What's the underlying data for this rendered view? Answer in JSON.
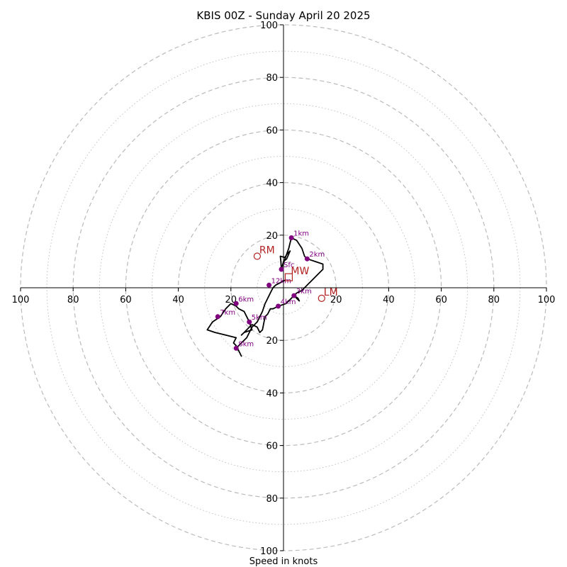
{
  "chart_data": {
    "type": "hodograph",
    "title": "KBIS 00Z - Sunday April 20 2025",
    "xlabel": "Speed in knots",
    "max_speed": 100,
    "ring_step": 20,
    "tick_labels": [
      "100",
      "80",
      "60",
      "40",
      "20",
      "20",
      "40",
      "60",
      "80",
      "100"
    ],
    "y_tick_labels_top": [
      "100",
      "80",
      "60",
      "40",
      "20"
    ],
    "y_tick_labels_bottom": [
      "20",
      "40",
      "60",
      "80",
      "100"
    ],
    "grid": true,
    "colors": {
      "trace": "#000000",
      "height_marker": "#800080",
      "motion_marker": "#b22222",
      "grid": "#bbbbbb"
    },
    "trace": [
      [
        -0.8,
        7
      ],
      [
        -1,
        10
      ],
      [
        -1.2,
        12
      ],
      [
        0.5,
        11.5
      ],
      [
        1.5,
        13
      ],
      [
        2.5,
        14
      ],
      [
        1.2,
        11
      ],
      [
        0,
        10
      ],
      [
        -0.5,
        8
      ],
      [
        2,
        15
      ],
      [
        3,
        19
      ],
      [
        5,
        18
      ],
      [
        7,
        15
      ],
      [
        8,
        12
      ],
      [
        9,
        11
      ],
      [
        12,
        10
      ],
      [
        15,
        9
      ],
      [
        15,
        7
      ],
      [
        13,
        5
      ],
      [
        11,
        3
      ],
      [
        9,
        1
      ],
      [
        7,
        -1
      ],
      [
        5,
        -2
      ],
      [
        4,
        -3
      ],
      [
        5.5,
        -4
      ],
      [
        6,
        -5
      ],
      [
        4,
        -3
      ],
      [
        1,
        -6
      ],
      [
        -2,
        -7
      ],
      [
        -4,
        -8
      ],
      [
        -5,
        -8
      ],
      [
        -6,
        -10
      ],
      [
        -7,
        -11
      ],
      [
        -8,
        -16
      ],
      [
        -9,
        -17
      ],
      [
        -10,
        -15
      ],
      [
        -12,
        -14
      ],
      [
        -15,
        -17
      ],
      [
        -16,
        -18
      ],
      [
        -15,
        -17
      ],
      [
        -12,
        -16
      ],
      [
        -13,
        -13
      ],
      [
        -14,
        -11
      ],
      [
        -15,
        -9
      ],
      [
        -17,
        -8
      ],
      [
        -18,
        -7
      ],
      [
        -20,
        -6
      ],
      [
        -22,
        -8
      ],
      [
        -24,
        -11
      ],
      [
        -27,
        -13
      ],
      [
        -29,
        -16
      ],
      [
        -26,
        -17
      ],
      [
        -22,
        -18
      ],
      [
        -18,
        -19
      ],
      [
        -19,
        -21
      ],
      [
        -18,
        -22
      ],
      [
        -17,
        -24
      ],
      [
        -16,
        -26
      ],
      [
        -17,
        -24
      ],
      [
        -18,
        -23
      ],
      [
        -16,
        -21
      ],
      [
        -14,
        -19
      ],
      [
        -13,
        -17
      ],
      [
        -12,
        -15
      ],
      [
        -10,
        -13
      ],
      [
        -9,
        -11
      ],
      [
        -8,
        -9
      ],
      [
        -7,
        -6
      ],
      [
        -6.5,
        -5
      ],
      [
        -5,
        -2
      ],
      [
        -4,
        0
      ],
      [
        -3,
        1
      ],
      [
        0.8,
        3
      ]
    ],
    "height_markers": [
      {
        "label": "Sfc",
        "x": -0.8,
        "y": 7
      },
      {
        "label": "1km",
        "x": 3,
        "y": 19
      },
      {
        "label": "2km",
        "x": 9,
        "y": 11
      },
      {
        "label": "3km",
        "x": 4,
        "y": -3
      },
      {
        "label": "4km",
        "x": -2,
        "y": -7
      },
      {
        "label": "5km",
        "x": -13,
        "y": -13
      },
      {
        "label": "6km",
        "x": -18,
        "y": -6
      },
      {
        "label": "7km",
        "x": -25,
        "y": -11
      },
      {
        "label": "8km",
        "x": -18,
        "y": -23
      },
      {
        "label": "12km",
        "x": -5.5,
        "y": 1
      }
    ],
    "storm_motions": [
      {
        "label": "RM",
        "x": -10,
        "y": 12,
        "marker": "circle"
      },
      {
        "label": "LM",
        "x": 14.5,
        "y": -4,
        "marker": "circle"
      },
      {
        "label": "MW",
        "x": 2,
        "y": 4,
        "marker": "square"
      }
    ]
  }
}
